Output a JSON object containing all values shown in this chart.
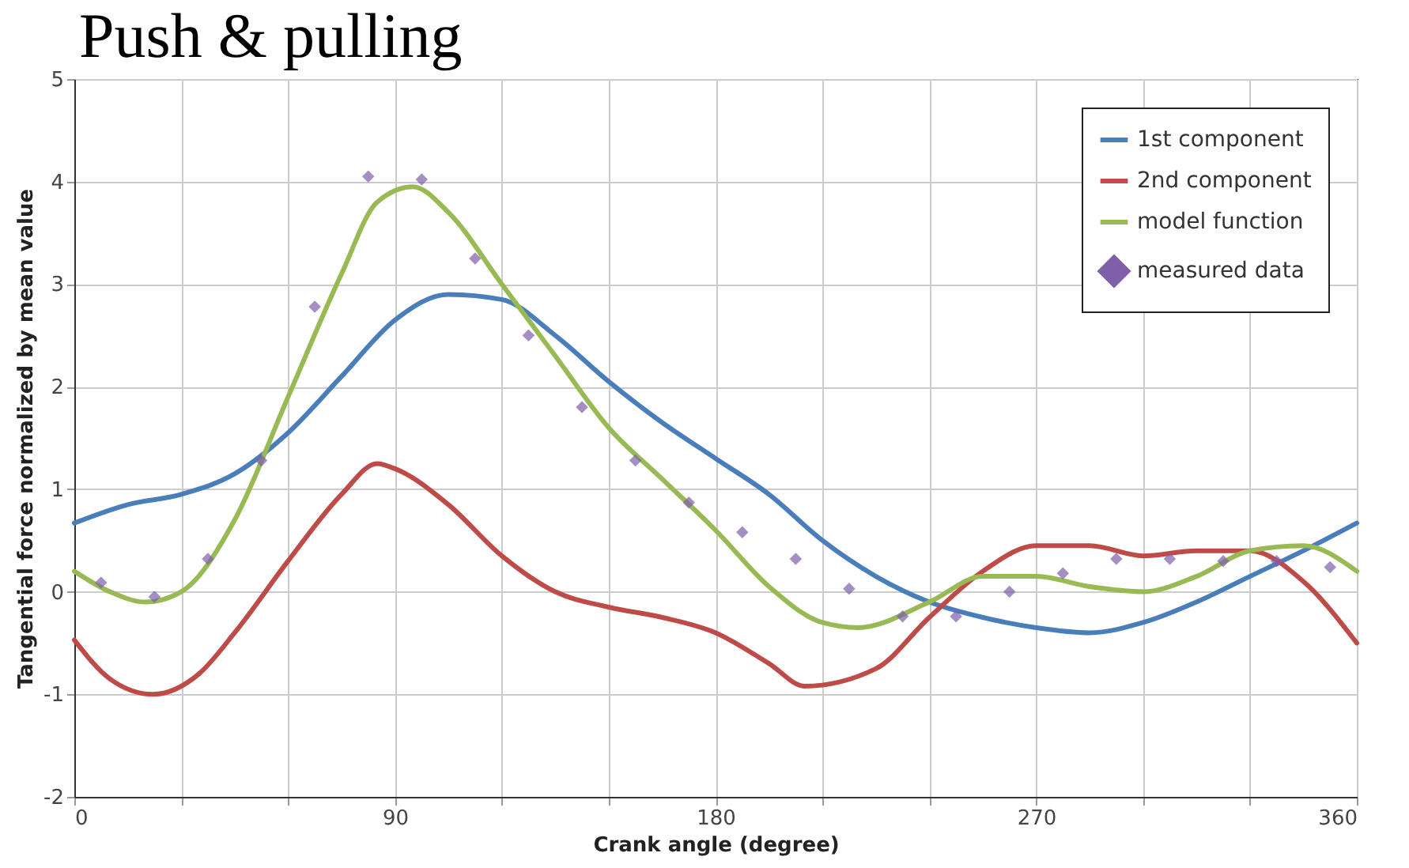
{
  "chart_data": {
    "type": "line",
    "title": "Push & pulling",
    "xlabel": "Crank angle (degree)",
    "ylabel": "Tangential force normalized by mean value",
    "xlim": [
      0,
      360
    ],
    "xticks": [
      0,
      {
        "value": 30,
        "label": null
      },
      {
        "value": 60,
        "label": null
      },
      90,
      {
        "value": 120,
        "label": null
      },
      {
        "value": 150,
        "label": null
      },
      180,
      {
        "value": 210,
        "label": null
      },
      {
        "value": 240,
        "label": null
      },
      270,
      {
        "value": 300,
        "label": null
      },
      {
        "value": 330,
        "label": null
      },
      360
    ],
    "ylim": [
      -2,
      5
    ],
    "yticks": [
      -2,
      -1,
      0,
      1,
      2,
      3,
      4,
      5
    ],
    "grid": true,
    "legend": "top right",
    "line_style": "solid",
    "series": [
      {
        "name": "1st component",
        "color": "#4a7ebb",
        "x": [
          0,
          15,
          30,
          45,
          60,
          75,
          90,
          105,
          120,
          135,
          150,
          165,
          180,
          195,
          210,
          225,
          240,
          255,
          270,
          285,
          300,
          315,
          330,
          345,
          360
        ],
        "values": [
          0.67,
          0.85,
          0.95,
          1.15,
          1.55,
          2.1,
          2.65,
          2.9,
          2.85,
          2.5,
          2.05,
          1.65,
          1.3,
          0.95,
          0.5,
          0.15,
          -0.1,
          -0.25,
          -0.35,
          -0.4,
          -0.3,
          -0.1,
          0.15,
          0.4,
          0.67
        ]
      },
      {
        "name": "2nd component",
        "color": "#be4b48",
        "x": [
          0,
          10,
          22,
          35,
          45,
          60,
          75,
          85,
          90,
          105,
          120,
          135,
          150,
          165,
          180,
          195,
          205,
          225,
          240,
          255,
          270,
          285,
          300,
          315,
          330,
          345,
          360
        ],
        "values": [
          -0.47,
          -0.85,
          -1.0,
          -0.8,
          -0.4,
          0.3,
          0.95,
          1.25,
          1.2,
          0.85,
          0.35,
          0.0,
          -0.15,
          -0.25,
          -0.4,
          -0.7,
          -0.92,
          -0.75,
          -0.25,
          0.2,
          0.45,
          0.45,
          0.35,
          0.4,
          0.4,
          0.1,
          -0.5
        ]
      },
      {
        "name": "model function",
        "color": "#98b954",
        "x": [
          0,
          10,
          20,
          30,
          45,
          60,
          75,
          85,
          95,
          105,
          120,
          135,
          150,
          165,
          180,
          195,
          210,
          220,
          240,
          255,
          270,
          285,
          300,
          315,
          330,
          345,
          360
        ],
        "values": [
          0.2,
          0.0,
          -0.1,
          0.0,
          0.7,
          1.9,
          3.1,
          3.8,
          3.95,
          3.7,
          3.0,
          2.3,
          1.6,
          1.1,
          0.6,
          0.05,
          -0.3,
          -0.35,
          -0.1,
          0.15,
          0.15,
          0.05,
          0.0,
          0.15,
          0.4,
          0.45,
          0.2
        ]
      },
      {
        "name": "measured data",
        "type": "scatter",
        "marker": "diamond",
        "color": "#7f5fa8",
        "x": [
          7.5,
          22.5,
          37.5,
          52.5,
          67.5,
          82.5,
          97.5,
          112.5,
          127.5,
          142.5,
          157.5,
          172.5,
          187.5,
          202.5,
          217.5,
          232.5,
          247.5,
          262.5,
          277.5,
          292.5,
          307.5,
          322.5,
          337.5,
          352.5
        ],
        "values": [
          0.09,
          -0.05,
          0.32,
          1.28,
          2.78,
          4.05,
          4.02,
          3.25,
          2.5,
          1.8,
          1.28,
          0.87,
          0.58,
          0.32,
          0.03,
          -0.24,
          -0.24,
          0.0,
          0.18,
          0.32,
          0.32,
          0.3,
          0.3,
          0.24
        ]
      }
    ]
  }
}
